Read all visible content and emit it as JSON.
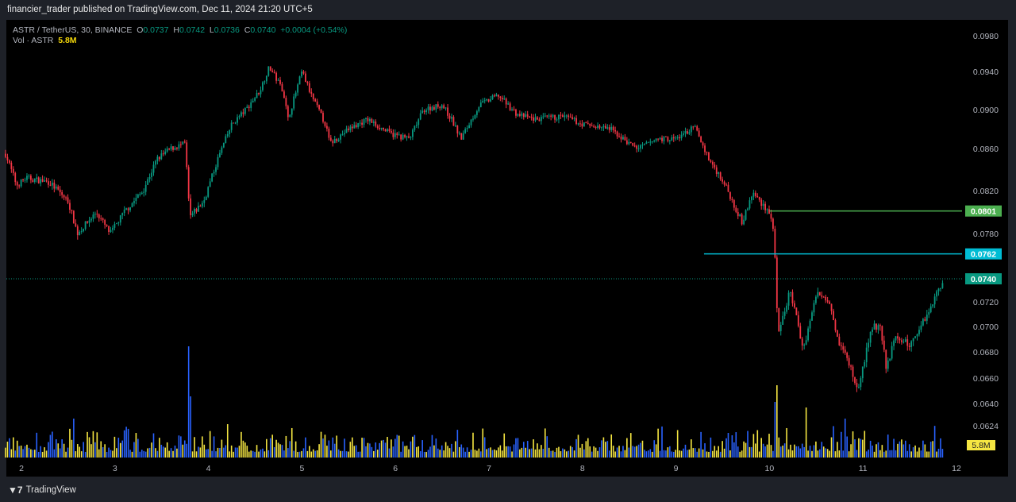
{
  "header": {
    "published": "financier_trader published on TradingView.com, Dec 11, 2024 21:20 UTC+5"
  },
  "legend": {
    "symbol": "ASTR / TetherUS, 30, BINANCE",
    "o_label": "O",
    "o": "0.0737",
    "h_label": "H",
    "h": "0.0742",
    "l_label": "L",
    "l": "0.0736",
    "c_label": "C",
    "c": "0.0740",
    "change": "+0.0004 (+0.54%)",
    "vol_label": "Vol · ASTR",
    "vol": "5.8M"
  },
  "brand": {
    "name": "TradingView"
  },
  "chart_data": {
    "type": "candlestick",
    "title": "ASTR / TetherUS, 30, BINANCE",
    "colors": {
      "up": "#089981",
      "down": "#f23645",
      "vol_a": "#2962ff",
      "vol_b": "#f5e642",
      "level_green": "#4caf50",
      "level_cyan": "#00bcd4",
      "last": "#089981",
      "vol_tag": "#f5e642"
    },
    "y_ticks": [
      "0.0980",
      "0.0940",
      "0.0900",
      "0.0860",
      "0.0820",
      "0.0780",
      "0.0720",
      "0.0700",
      "0.0680",
      "0.0660",
      "0.0640",
      "0.0624"
    ],
    "x_ticks": [
      "2",
      "3",
      "4",
      "5",
      "6",
      "7",
      "8",
      "9",
      "10",
      "11",
      "12"
    ],
    "levels": [
      {
        "label": "0.0801",
        "price": 0.0801,
        "from_day": 10.0,
        "color": "#4caf50"
      },
      {
        "label": "0.0762",
        "price": 0.0762,
        "from_day": 9.3,
        "color": "#00bcd4"
      }
    ],
    "last_price": {
      "label": "0.0740",
      "price": 0.074
    },
    "volume_tag": "5.8M",
    "price_path": [
      [
        1.83,
        0.0855
      ],
      [
        1.95,
        0.0825
      ],
      [
        2.05,
        0.0832
      ],
      [
        2.3,
        0.0828
      ],
      [
        2.5,
        0.081
      ],
      [
        2.6,
        0.078
      ],
      [
        2.8,
        0.08
      ],
      [
        2.95,
        0.078
      ],
      [
        3.1,
        0.08
      ],
      [
        3.3,
        0.082
      ],
      [
        3.45,
        0.085
      ],
      [
        3.6,
        0.086
      ],
      [
        3.75,
        0.0865
      ],
      [
        3.8,
        0.0795
      ],
      [
        3.95,
        0.081
      ],
      [
        4.1,
        0.085
      ],
      [
        4.25,
        0.0885
      ],
      [
        4.4,
        0.09
      ],
      [
        4.55,
        0.092
      ],
      [
        4.65,
        0.0945
      ],
      [
        4.8,
        0.092
      ],
      [
        4.85,
        0.089
      ],
      [
        5.0,
        0.094
      ],
      [
        5.1,
        0.0915
      ],
      [
        5.25,
        0.0885
      ],
      [
        5.3,
        0.0865
      ],
      [
        5.5,
        0.088
      ],
      [
        5.7,
        0.089
      ],
      [
        5.95,
        0.0875
      ],
      [
        6.15,
        0.087
      ],
      [
        6.3,
        0.09
      ],
      [
        6.5,
        0.0905
      ],
      [
        6.6,
        0.089
      ],
      [
        6.7,
        0.087
      ],
      [
        6.9,
        0.0905
      ],
      [
        7.1,
        0.0915
      ],
      [
        7.3,
        0.0895
      ],
      [
        7.5,
        0.089
      ],
      [
        7.8,
        0.0893
      ],
      [
        8.0,
        0.0885
      ],
      [
        8.3,
        0.088
      ],
      [
        8.5,
        0.0865
      ],
      [
        8.6,
        0.086
      ],
      [
        8.8,
        0.087
      ],
      [
        9.0,
        0.087
      ],
      [
        9.2,
        0.0882
      ],
      [
        9.35,
        0.085
      ],
      [
        9.5,
        0.083
      ],
      [
        9.71,
        0.079
      ],
      [
        9.82,
        0.0818
      ],
      [
        10.0,
        0.08
      ],
      [
        10.05,
        0.078
      ],
      [
        10.09,
        0.069
      ],
      [
        10.22,
        0.073
      ],
      [
        10.36,
        0.0682
      ],
      [
        10.51,
        0.0728
      ],
      [
        10.64,
        0.0722
      ],
      [
        10.73,
        0.069
      ],
      [
        10.86,
        0.067
      ],
      [
        10.94,
        0.065
      ],
      [
        11.1,
        0.07
      ],
      [
        11.18,
        0.07
      ],
      [
        11.25,
        0.0668
      ],
      [
        11.35,
        0.0692
      ],
      [
        11.5,
        0.0685
      ],
      [
        11.7,
        0.0712
      ],
      [
        11.86,
        0.074
      ]
    ],
    "volume_spikes": [
      [
        3.78,
        1.0
      ],
      [
        3.8,
        0.55
      ],
      [
        4.2,
        0.3
      ],
      [
        10.05,
        0.5
      ],
      [
        10.08,
        0.65
      ],
      [
        10.4,
        0.45
      ],
      [
        10.8,
        0.35
      ],
      [
        2.55,
        0.35
      ],
      [
        9.6,
        0.2
      ]
    ]
  }
}
